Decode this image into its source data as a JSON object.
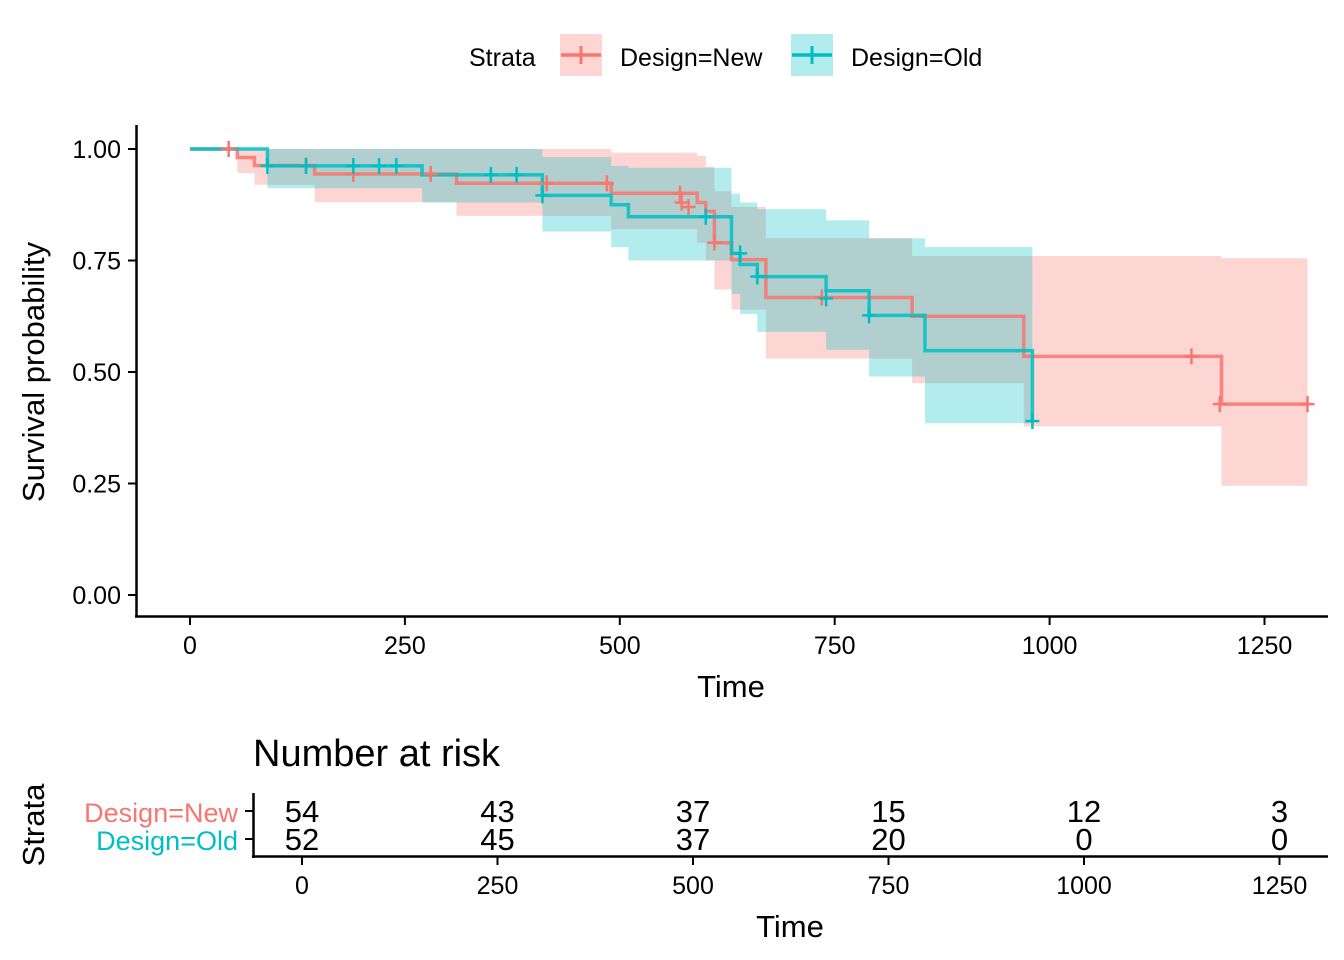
{
  "legend": {
    "title": "Strata",
    "entries": [
      "Design=New",
      "Design=Old"
    ],
    "position": "top"
  },
  "chart_data": [
    {
      "type": "line",
      "subtype": "step-survival",
      "xlabel": "Time",
      "ylabel": "Survival probability",
      "xlim": [
        0,
        1300
      ],
      "ylim": [
        0,
        1.05
      ],
      "x_ticks": [
        "0",
        "250",
        "500",
        "750",
        "1000",
        "1250"
      ],
      "y_ticks": [
        "0.00",
        "0.25",
        "0.50",
        "0.75",
        "1.00"
      ],
      "grid": false,
      "colors": {
        "Design=New": "#F8766D",
        "Design=Old": "#00BFC4"
      },
      "series": [
        {
          "name": "Design=New",
          "steps": [
            [
              0,
              1.0
            ],
            [
              55,
              0.981
            ],
            [
              75,
              0.963
            ],
            [
              145,
              0.944
            ],
            [
              310,
              0.923
            ],
            [
              490,
              0.901
            ],
            [
              590,
              0.88
            ],
            [
              600,
              0.86
            ],
            [
              610,
              0.79
            ],
            [
              630,
              0.752
            ],
            [
              670,
              0.667
            ],
            [
              840,
              0.625
            ],
            [
              970,
              0.535
            ],
            [
              1200,
              0.428
            ],
            [
              1300,
              0.428
            ]
          ],
          "ci": [
            [
              0,
              1.0,
              1.0
            ],
            [
              55,
              0.946,
              1.0
            ],
            [
              75,
              0.92,
              1.0
            ],
            [
              145,
              0.881,
              1.0
            ],
            [
              310,
              0.85,
              1.0
            ],
            [
              490,
              0.82,
              0.992
            ],
            [
              590,
              0.79,
              0.985
            ],
            [
              600,
              0.75,
              0.96
            ],
            [
              610,
              0.685,
              0.905
            ],
            [
              630,
              0.64,
              0.87
            ],
            [
              670,
              0.53,
              0.8
            ],
            [
              840,
              0.475,
              0.76
            ],
            [
              970,
              0.378,
              0.76
            ],
            [
              1200,
              0.245,
              0.755
            ],
            [
              1300,
              0.245,
              0.755
            ]
          ],
          "censor": [
            [
              45,
              1.0
            ],
            [
              135,
              0.963
            ],
            [
              190,
              0.944
            ],
            [
              280,
              0.944
            ],
            [
              415,
              0.923
            ],
            [
              485,
              0.923
            ],
            [
              570,
              0.9
            ],
            [
              572,
              0.88
            ],
            [
              580,
              0.87
            ],
            [
              610,
              0.79
            ],
            [
              735,
              0.667
            ],
            [
              1165,
              0.535
            ],
            [
              1198,
              0.428
            ],
            [
              1300,
              0.428
            ]
          ]
        },
        {
          "name": "Design=Old",
          "steps": [
            [
              0,
              1.0
            ],
            [
              90,
              0.962
            ],
            [
              270,
              0.942
            ],
            [
              410,
              0.896
            ],
            [
              490,
              0.875
            ],
            [
              510,
              0.848
            ],
            [
              630,
              0.766
            ],
            [
              640,
              0.741
            ],
            [
              660,
              0.714
            ],
            [
              740,
              0.682
            ],
            [
              790,
              0.627
            ],
            [
              855,
              0.548
            ],
            [
              980,
              0.39
            ]
          ],
          "ci": [
            [
              0,
              1.0,
              1.0
            ],
            [
              90,
              0.912,
              1.0
            ],
            [
              270,
              0.88,
              1.0
            ],
            [
              410,
              0.815,
              0.982
            ],
            [
              490,
              0.78,
              0.962
            ],
            [
              510,
              0.75,
              0.958
            ],
            [
              630,
              0.675,
              0.9
            ],
            [
              640,
              0.63,
              0.88
            ],
            [
              660,
              0.59,
              0.865
            ],
            [
              740,
              0.55,
              0.84
            ],
            [
              790,
              0.49,
              0.8
            ],
            [
              855,
              0.385,
              0.78
            ],
            [
              980,
              0.385,
              0.78
            ]
          ],
          "censor": [
            [
              90,
              0.962
            ],
            [
              135,
              0.962
            ],
            [
              190,
              0.962
            ],
            [
              220,
              0.962
            ],
            [
              240,
              0.962
            ],
            [
              350,
              0.942
            ],
            [
              380,
              0.942
            ],
            [
              410,
              0.896
            ],
            [
              600,
              0.848
            ],
            [
              640,
              0.766
            ],
            [
              660,
              0.714
            ],
            [
              740,
              0.665
            ],
            [
              790,
              0.627
            ],
            [
              980,
              0.39
            ]
          ]
        }
      ]
    },
    {
      "type": "table",
      "title": "Number at risk",
      "xlabel": "Time",
      "ylabel": "Strata",
      "xlim": [
        -45,
        1310
      ],
      "x_ticks": [
        "0",
        "250",
        "500",
        "750",
        "1000",
        "1250"
      ],
      "time_points": [
        0,
        250,
        500,
        750,
        1000,
        1250
      ],
      "rows": [
        {
          "label": "Design=New",
          "values": [
            "54",
            "43",
            "37",
            "15",
            "12",
            "3"
          ]
        },
        {
          "label": "Design=Old",
          "values": [
            "52",
            "45",
            "37",
            "20",
            "0",
            "0"
          ]
        }
      ]
    }
  ]
}
